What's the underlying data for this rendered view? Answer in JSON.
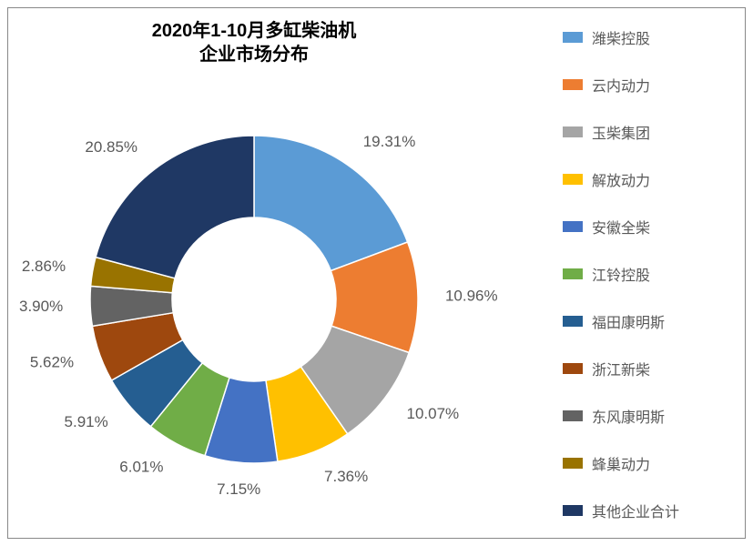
{
  "chart": {
    "type": "donut",
    "title_line1": "2020年1-10月多缸柴油机",
    "title_line2": "企业市场分布",
    "title_fontsize": 20,
    "title_fontweight": "bold",
    "title_color": "#000000",
    "background_color": "#ffffff",
    "border_color": "#888888",
    "inner_radius_ratio": 0.5,
    "outer_radius": 180,
    "start_angle_deg": -90,
    "label_color": "#595959",
    "label_fontsize": 17,
    "slices": [
      {
        "name": "潍柴控股",
        "value": 19.31,
        "color": "#5b9bd5",
        "label": "19.31%"
      },
      {
        "name": "云内动力",
        "value": 10.96,
        "color": "#ed7d31",
        "label": "10.96%"
      },
      {
        "name": "玉柴集团",
        "value": 10.07,
        "color": "#a5a5a5",
        "label": "10.07%"
      },
      {
        "name": "解放动力",
        "value": 7.36,
        "color": "#ffc000",
        "label": "7.36%"
      },
      {
        "name": "安徽全柴",
        "value": 7.15,
        "color": "#4472c4",
        "label": "7.15%"
      },
      {
        "name": "江铃控股",
        "value": 6.01,
        "color": "#70ad47",
        "label": "6.01%"
      },
      {
        "name": "福田康明斯",
        "value": 5.91,
        "color": "#255e91",
        "label": "5.91%"
      },
      {
        "name": "浙江新柴",
        "value": 5.62,
        "color": "#9e480e",
        "label": "5.62%"
      },
      {
        "name": "东风康明斯",
        "value": 3.9,
        "color": "#636363",
        "label": "3.90%"
      },
      {
        "name": "蜂巢动力",
        "value": 2.86,
        "color": "#997300",
        "label": "2.86%"
      },
      {
        "name": "其他企业合计",
        "value": 20.85,
        "color": "#1f3864",
        "label": "20.85%"
      }
    ],
    "legend": {
      "position": "right",
      "swatch_width": 22,
      "swatch_height": 12,
      "fontsize": 16,
      "text_color": "#595959",
      "item_gap": 28
    }
  }
}
